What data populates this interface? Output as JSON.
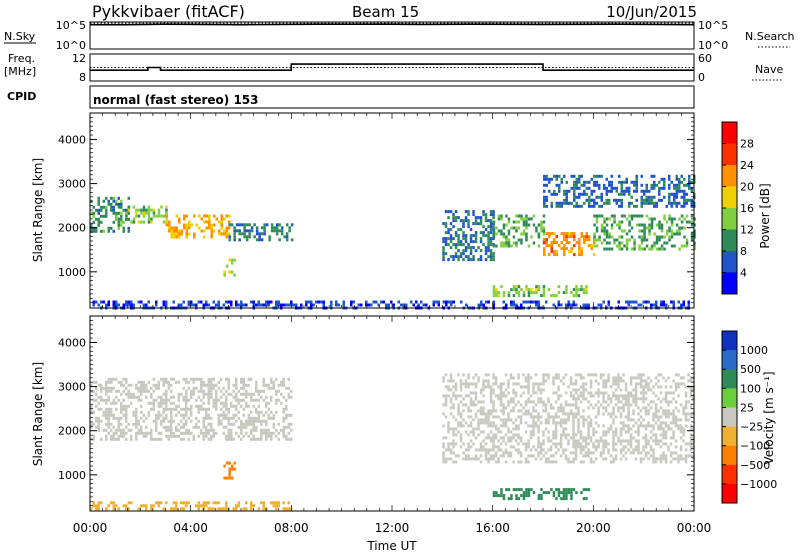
{
  "header": {
    "station": "Pykkvibaer (fitACF)",
    "beam": "Beam 15",
    "date": "10/Jun/2015"
  },
  "noise_panel": {
    "left_label": "N.Sky",
    "left_ticks": [
      "10^5",
      "10^0"
    ],
    "right_ticks": [
      "10^5",
      "10^0"
    ],
    "right_label": "N.Search",
    "series": [
      {
        "name": "N.Sky",
        "x": [
          0,
          1.5,
          3,
          6,
          9,
          12,
          13.2,
          15,
          18,
          21,
          24
        ],
        "y": [
          4.5,
          4.5,
          4.6,
          4.5,
          4.6,
          4.6,
          4.55,
          4.6,
          4.55,
          4.6,
          4.5
        ]
      },
      {
        "name": "N.Search",
        "x": [
          0,
          6,
          12,
          18,
          24
        ],
        "y": [
          4.8,
          4.8,
          4.8,
          4.8,
          4.8
        ]
      }
    ]
  },
  "freq_panel": {
    "left_label_top": "Freq.",
    "left_label_unit": "[MHz]",
    "left_ticks": [
      "12",
      "8"
    ],
    "right_ticks": [
      "60",
      "0"
    ],
    "right_label": "Nave",
    "freq_series": {
      "x": [
        0,
        2.3,
        2.3,
        2.8,
        2.8,
        8,
        8,
        18,
        18,
        24
      ],
      "y": [
        9.6,
        9.6,
        10.0,
        10.0,
        9.6,
        9.6,
        10.5,
        10.5,
        9.6,
        9.6
      ]
    },
    "nave_series": {
      "x": [
        0,
        24
      ],
      "y": [
        30,
        30
      ]
    }
  },
  "cpid": {
    "label": "CPID",
    "text": "normal (fast stereo) 153"
  },
  "power_panel": {
    "ylabel": "Slant Range [km]",
    "yticks": [
      "1000",
      "2000",
      "3000",
      "4000"
    ],
    "colorbar_label": "Power [dB]",
    "colorbar_ticks": [
      "4",
      "8",
      "12",
      "16",
      "20",
      "24",
      "28"
    ],
    "colors": [
      "#0000ff",
      "#1f55c8",
      "#2e8b57",
      "#7fcf3f",
      "#f0d000",
      "#ff9000",
      "#ff3000",
      "#ff0000"
    ]
  },
  "velocity_panel": {
    "ylabel": "Slant Range [km]",
    "yticks": [
      "1000",
      "2000",
      "3000",
      "4000"
    ],
    "colorbar_label": "Velocity [m s⁻¹]",
    "colorbar_ticks": [
      "1000",
      "500",
      "100",
      "25",
      "−25",
      "−100",
      "−500",
      "−1000"
    ],
    "colors": [
      "#1030c0",
      "#2a6ac8",
      "#2e8b57",
      "#6ccf3a",
      "#c8c8c0",
      "#f0b030",
      "#ff8000",
      "#ff3000",
      "#ff0000"
    ]
  },
  "xaxis": {
    "label": "Time UT",
    "ticks": [
      "00:00",
      "04:00",
      "08:00",
      "12:00",
      "16:00",
      "20:00",
      "00:00"
    ]
  },
  "chart_data": {
    "type": "heatmap",
    "x_units": "hours UT",
    "y_units": "km",
    "xlim": [
      0,
      24
    ],
    "ylim": [
      180,
      4600
    ],
    "power_regions": [
      {
        "t0": 0.0,
        "t1": 1.5,
        "r0": 1900,
        "r1": 2700,
        "power_db": 10
      },
      {
        "t0": 1.0,
        "t1": 3.0,
        "r0": 2100,
        "r1": 2500,
        "power_db": 14
      },
      {
        "t0": 3.0,
        "t1": 5.5,
        "r0": 1800,
        "r1": 2300,
        "power_db": 20
      },
      {
        "t0": 5.5,
        "t1": 8.0,
        "r0": 1700,
        "r1": 2100,
        "power_db": 9
      },
      {
        "t0": 5.3,
        "t1": 5.7,
        "r0": 900,
        "r1": 1300,
        "power_db": 16
      },
      {
        "t0": 14.0,
        "t1": 16.0,
        "r0": 1300,
        "r1": 2400,
        "power_db": 8
      },
      {
        "t0": 16.0,
        "t1": 18.0,
        "r0": 1600,
        "r1": 2300,
        "power_db": 12
      },
      {
        "t0": 18.0,
        "t1": 20.0,
        "r0": 1400,
        "r1": 1900,
        "power_db": 22
      },
      {
        "t0": 20.0,
        "t1": 24.0,
        "r0": 1500,
        "r1": 2300,
        "power_db": 11
      },
      {
        "t0": 18.0,
        "t1": 24.0,
        "r0": 2500,
        "r1": 3200,
        "power_db": 7
      },
      {
        "t0": 16.0,
        "t1": 19.8,
        "r0": 450,
        "r1": 700,
        "power_db": 14
      },
      {
        "t0": 0.0,
        "t1": 24.0,
        "r0": 200,
        "r1": 350,
        "power_db": 5
      }
    ],
    "velocity_regions": [
      {
        "t0": 0.0,
        "t1": 8.0,
        "r0": 1800,
        "r1": 3200,
        "velocity": 0
      },
      {
        "t0": 5.3,
        "t1": 5.7,
        "r0": 900,
        "r1": 1300,
        "velocity": -300
      },
      {
        "t0": 14.0,
        "t1": 24.0,
        "r0": 1300,
        "r1": 3300,
        "velocity": 0
      },
      {
        "t0": 16.0,
        "t1": 19.8,
        "r0": 450,
        "r1": 700,
        "velocity": 150
      },
      {
        "t0": 0.0,
        "t1": 8.0,
        "r0": 200,
        "r1": 400,
        "velocity": -60
      }
    ]
  }
}
